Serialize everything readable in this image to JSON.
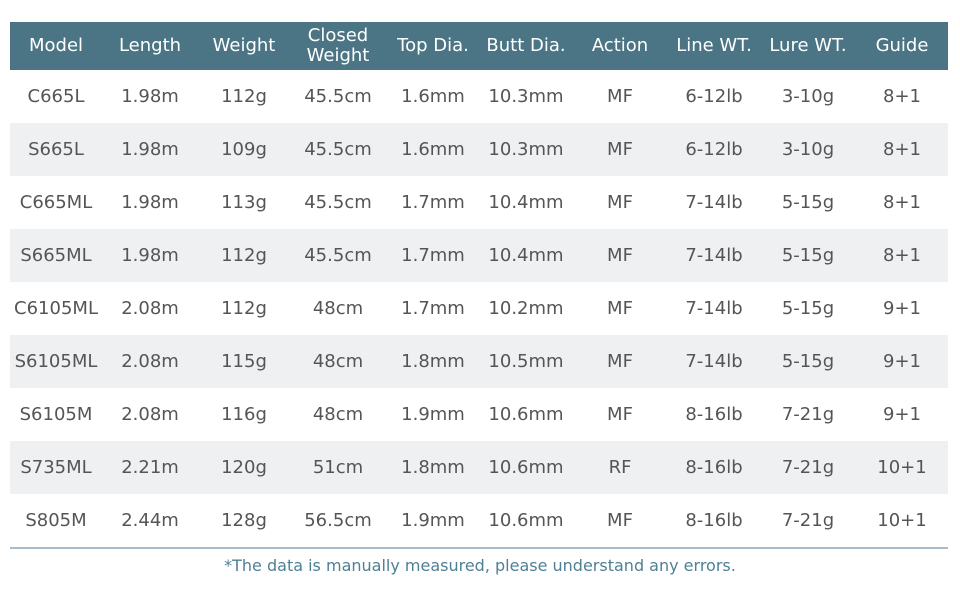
{
  "table": {
    "header": [
      "Model",
      "Length",
      "Weight",
      "Closed Weight",
      "Top Dia.",
      "Butt Dia.",
      "Action",
      "Line WT.",
      "Lure WT.",
      "Guide"
    ],
    "rows": [
      [
        "C665L",
        "1.98m",
        "112g",
        "45.5cm",
        "1.6mm",
        "10.3mm",
        "MF",
        "6-12lb",
        "3-10g",
        "8+1"
      ],
      [
        "S665L",
        "1.98m",
        "109g",
        "45.5cm",
        "1.6mm",
        "10.3mm",
        "MF",
        "6-12lb",
        "3-10g",
        "8+1"
      ],
      [
        "C665ML",
        "1.98m",
        "113g",
        "45.5cm",
        "1.7mm",
        "10.4mm",
        "MF",
        "7-14lb",
        "5-15g",
        "8+1"
      ],
      [
        "S665ML",
        "1.98m",
        "112g",
        "45.5cm",
        "1.7mm",
        "10.4mm",
        "MF",
        "7-14lb",
        "5-15g",
        "8+1"
      ],
      [
        "C6105ML",
        "2.08m",
        "112g",
        "48cm",
        "1.7mm",
        "10.2mm",
        "MF",
        "7-14lb",
        "5-15g",
        "9+1"
      ],
      [
        "S6105ML",
        "2.08m",
        "115g",
        "48cm",
        "1.8mm",
        "10.5mm",
        "MF",
        "7-14lb",
        "5-15g",
        "9+1"
      ],
      [
        "S6105M",
        "2.08m",
        "116g",
        "48cm",
        "1.9mm",
        "10.6mm",
        "MF",
        "8-16lb",
        "7-21g",
        "9+1"
      ],
      [
        "S735ML",
        "2.21m",
        "120g",
        "51cm",
        "1.8mm",
        "10.6mm",
        "RF",
        "8-16lb",
        "7-21g",
        "10+1"
      ],
      [
        "S805M",
        "2.44m",
        "128g",
        "56.5cm",
        "1.9mm",
        "10.6mm",
        "MF",
        "8-16lb",
        "7-21g",
        "10+1"
      ]
    ]
  },
  "footnote": "*The data is manually measured, please understand any errors."
}
